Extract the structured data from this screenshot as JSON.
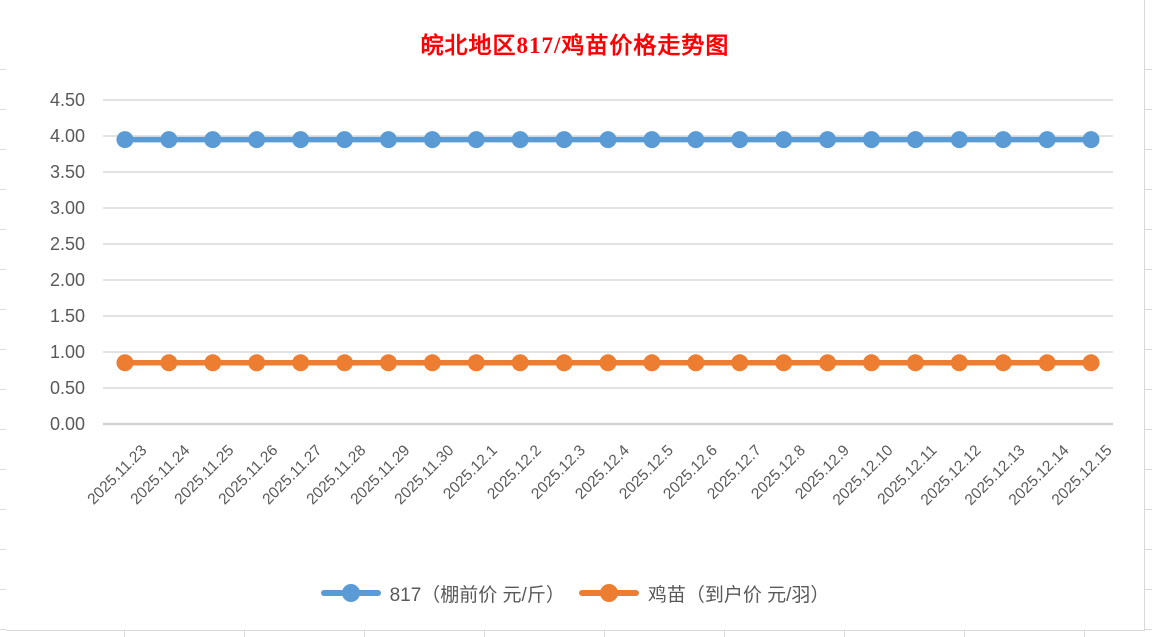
{
  "chart_data": {
    "type": "line",
    "title": "皖北地区817/鸡苗价格走势图",
    "title_color": "#ff0000",
    "categories": [
      "2025.11.23",
      "2025.11.24",
      "2025.11.25",
      "2025.11.26",
      "2025.11.27",
      "2025.11.28",
      "2025.11.29",
      "2025.11.30",
      "2025.12.1",
      "2025.12.2",
      "2025.12.3",
      "2025.12.4",
      "2025.12.5",
      "2025.12.6",
      "2025.12.7",
      "2025.12.8",
      "2025.12.9",
      "2025.12.10",
      "2025.12.11",
      "2025.12.12",
      "2025.12.13",
      "2025.12.14",
      "2025.12.15"
    ],
    "series": [
      {
        "name": "817（棚前价 元/斤）",
        "color": "#5b9bd5",
        "values": [
          3.95,
          3.95,
          3.95,
          3.95,
          3.95,
          3.95,
          3.95,
          3.95,
          3.95,
          3.95,
          3.95,
          3.95,
          3.95,
          3.95,
          3.95,
          3.95,
          3.95,
          3.95,
          3.95,
          3.95,
          3.95,
          3.95,
          3.95
        ]
      },
      {
        "name": "鸡苗（到户价 元/羽）",
        "color": "#ed7d31",
        "values": [
          0.85,
          0.85,
          0.85,
          0.85,
          0.85,
          0.85,
          0.85,
          0.85,
          0.85,
          0.85,
          0.85,
          0.85,
          0.85,
          0.85,
          0.85,
          0.85,
          0.85,
          0.85,
          0.85,
          0.85,
          0.85,
          0.85,
          0.85
        ]
      }
    ],
    "xlabel": "",
    "ylabel": "",
    "ylim": [
      0,
      4.5
    ],
    "ytick_step": 0.5,
    "ytick_decimals": 2,
    "grid": "horizontal",
    "legend_position": "bottom",
    "axis_label_color": "#595959",
    "gridline_color": "#d9d9d9",
    "axisline_color": "#d3d3d3"
  }
}
